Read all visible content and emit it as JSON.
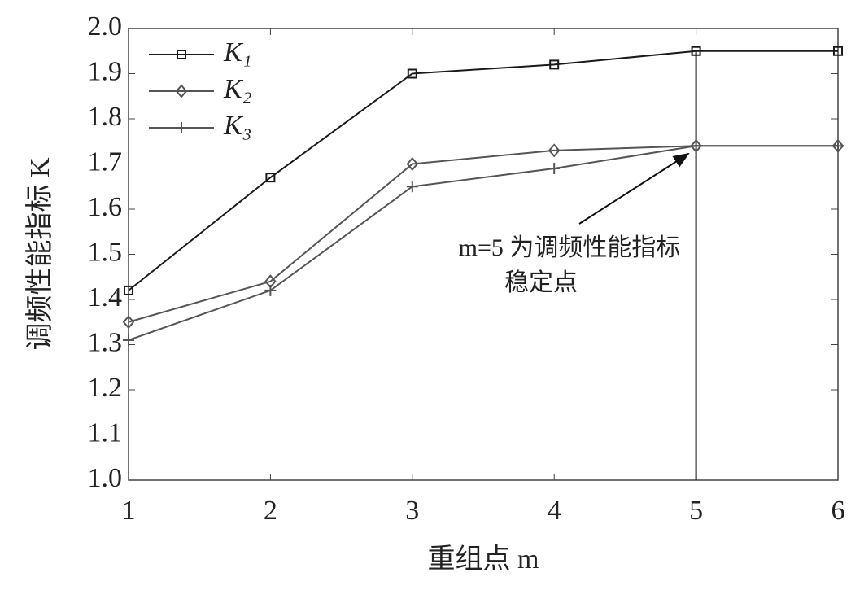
{
  "chart_data": {
    "type": "line",
    "x_label": "重组点 m",
    "y_label": "调频性能指标 K",
    "x": [
      1,
      2,
      3,
      4,
      5,
      6
    ],
    "series": [
      {
        "name": "K₁",
        "color": "#1a1a1a",
        "marker": "square",
        "values": [
          1.42,
          1.67,
          1.9,
          1.92,
          1.95,
          1.95
        ]
      },
      {
        "name": "K₂",
        "color": "#555555",
        "marker": "diamond",
        "values": [
          1.35,
          1.44,
          1.7,
          1.73,
          1.74,
          1.74
        ]
      },
      {
        "name": "K₃",
        "color": "#555555",
        "marker": "plus",
        "values": [
          1.31,
          1.42,
          1.65,
          1.69,
          1.74,
          1.74
        ]
      }
    ],
    "xlim": [
      1,
      6
    ],
    "xticks": [
      1,
      2,
      3,
      4,
      5,
      6
    ],
    "ylim": [
      1,
      2
    ],
    "yticks": [
      {
        "value": 1,
        "label": "1.0"
      },
      1.1,
      1.2,
      1.3,
      1.4,
      1.5,
      1.6,
      1.7,
      1.8,
      1.9,
      {
        "value": 2,
        "label": "2.0"
      }
    ],
    "vline_x": 5,
    "annotation": [
      "m=5 为调频性能指标",
      "稳定点"
    ],
    "legend": "upper left"
  }
}
